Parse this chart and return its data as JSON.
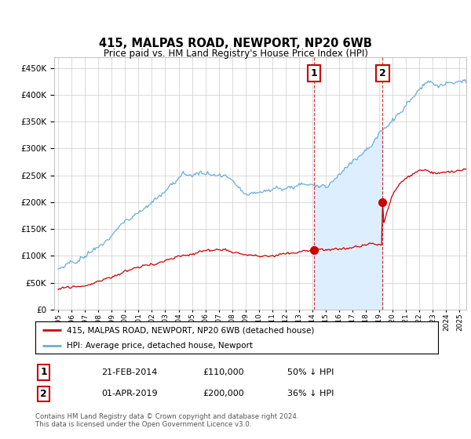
{
  "title": "415, MALPAS ROAD, NEWPORT, NP20 6WB",
  "subtitle": "Price paid vs. HM Land Registry's House Price Index (HPI)",
  "legend_entry1": "415, MALPAS ROAD, NEWPORT, NP20 6WB (detached house)",
  "legend_entry2": "HPI: Average price, detached house, Newport",
  "annotation1_label": "1",
  "annotation1_date": "21-FEB-2014",
  "annotation1_price": "£110,000",
  "annotation1_hpi": "50% ↓ HPI",
  "annotation1_year": 2014.12,
  "annotation1_value_red": 110000,
  "annotation2_label": "2",
  "annotation2_date": "01-APR-2019",
  "annotation2_price": "£200,000",
  "annotation2_hpi": "36% ↓ HPI",
  "annotation2_year": 2019.25,
  "annotation2_value_red": 200000,
  "footer": "Contains HM Land Registry data © Crown copyright and database right 2024.\nThis data is licensed under the Open Government Licence v3.0.",
  "ylim": [
    0,
    470000
  ],
  "xlim_start": 1994.7,
  "xlim_end": 2025.5,
  "red_color": "#cc0000",
  "blue_color": "#6baed6",
  "blue_fill_color": "#ddeeff",
  "annotation_box_color": "#cc0000",
  "vline_color": "#cc0000",
  "background_color": "#ffffff",
  "grid_color": "#cccccc"
}
